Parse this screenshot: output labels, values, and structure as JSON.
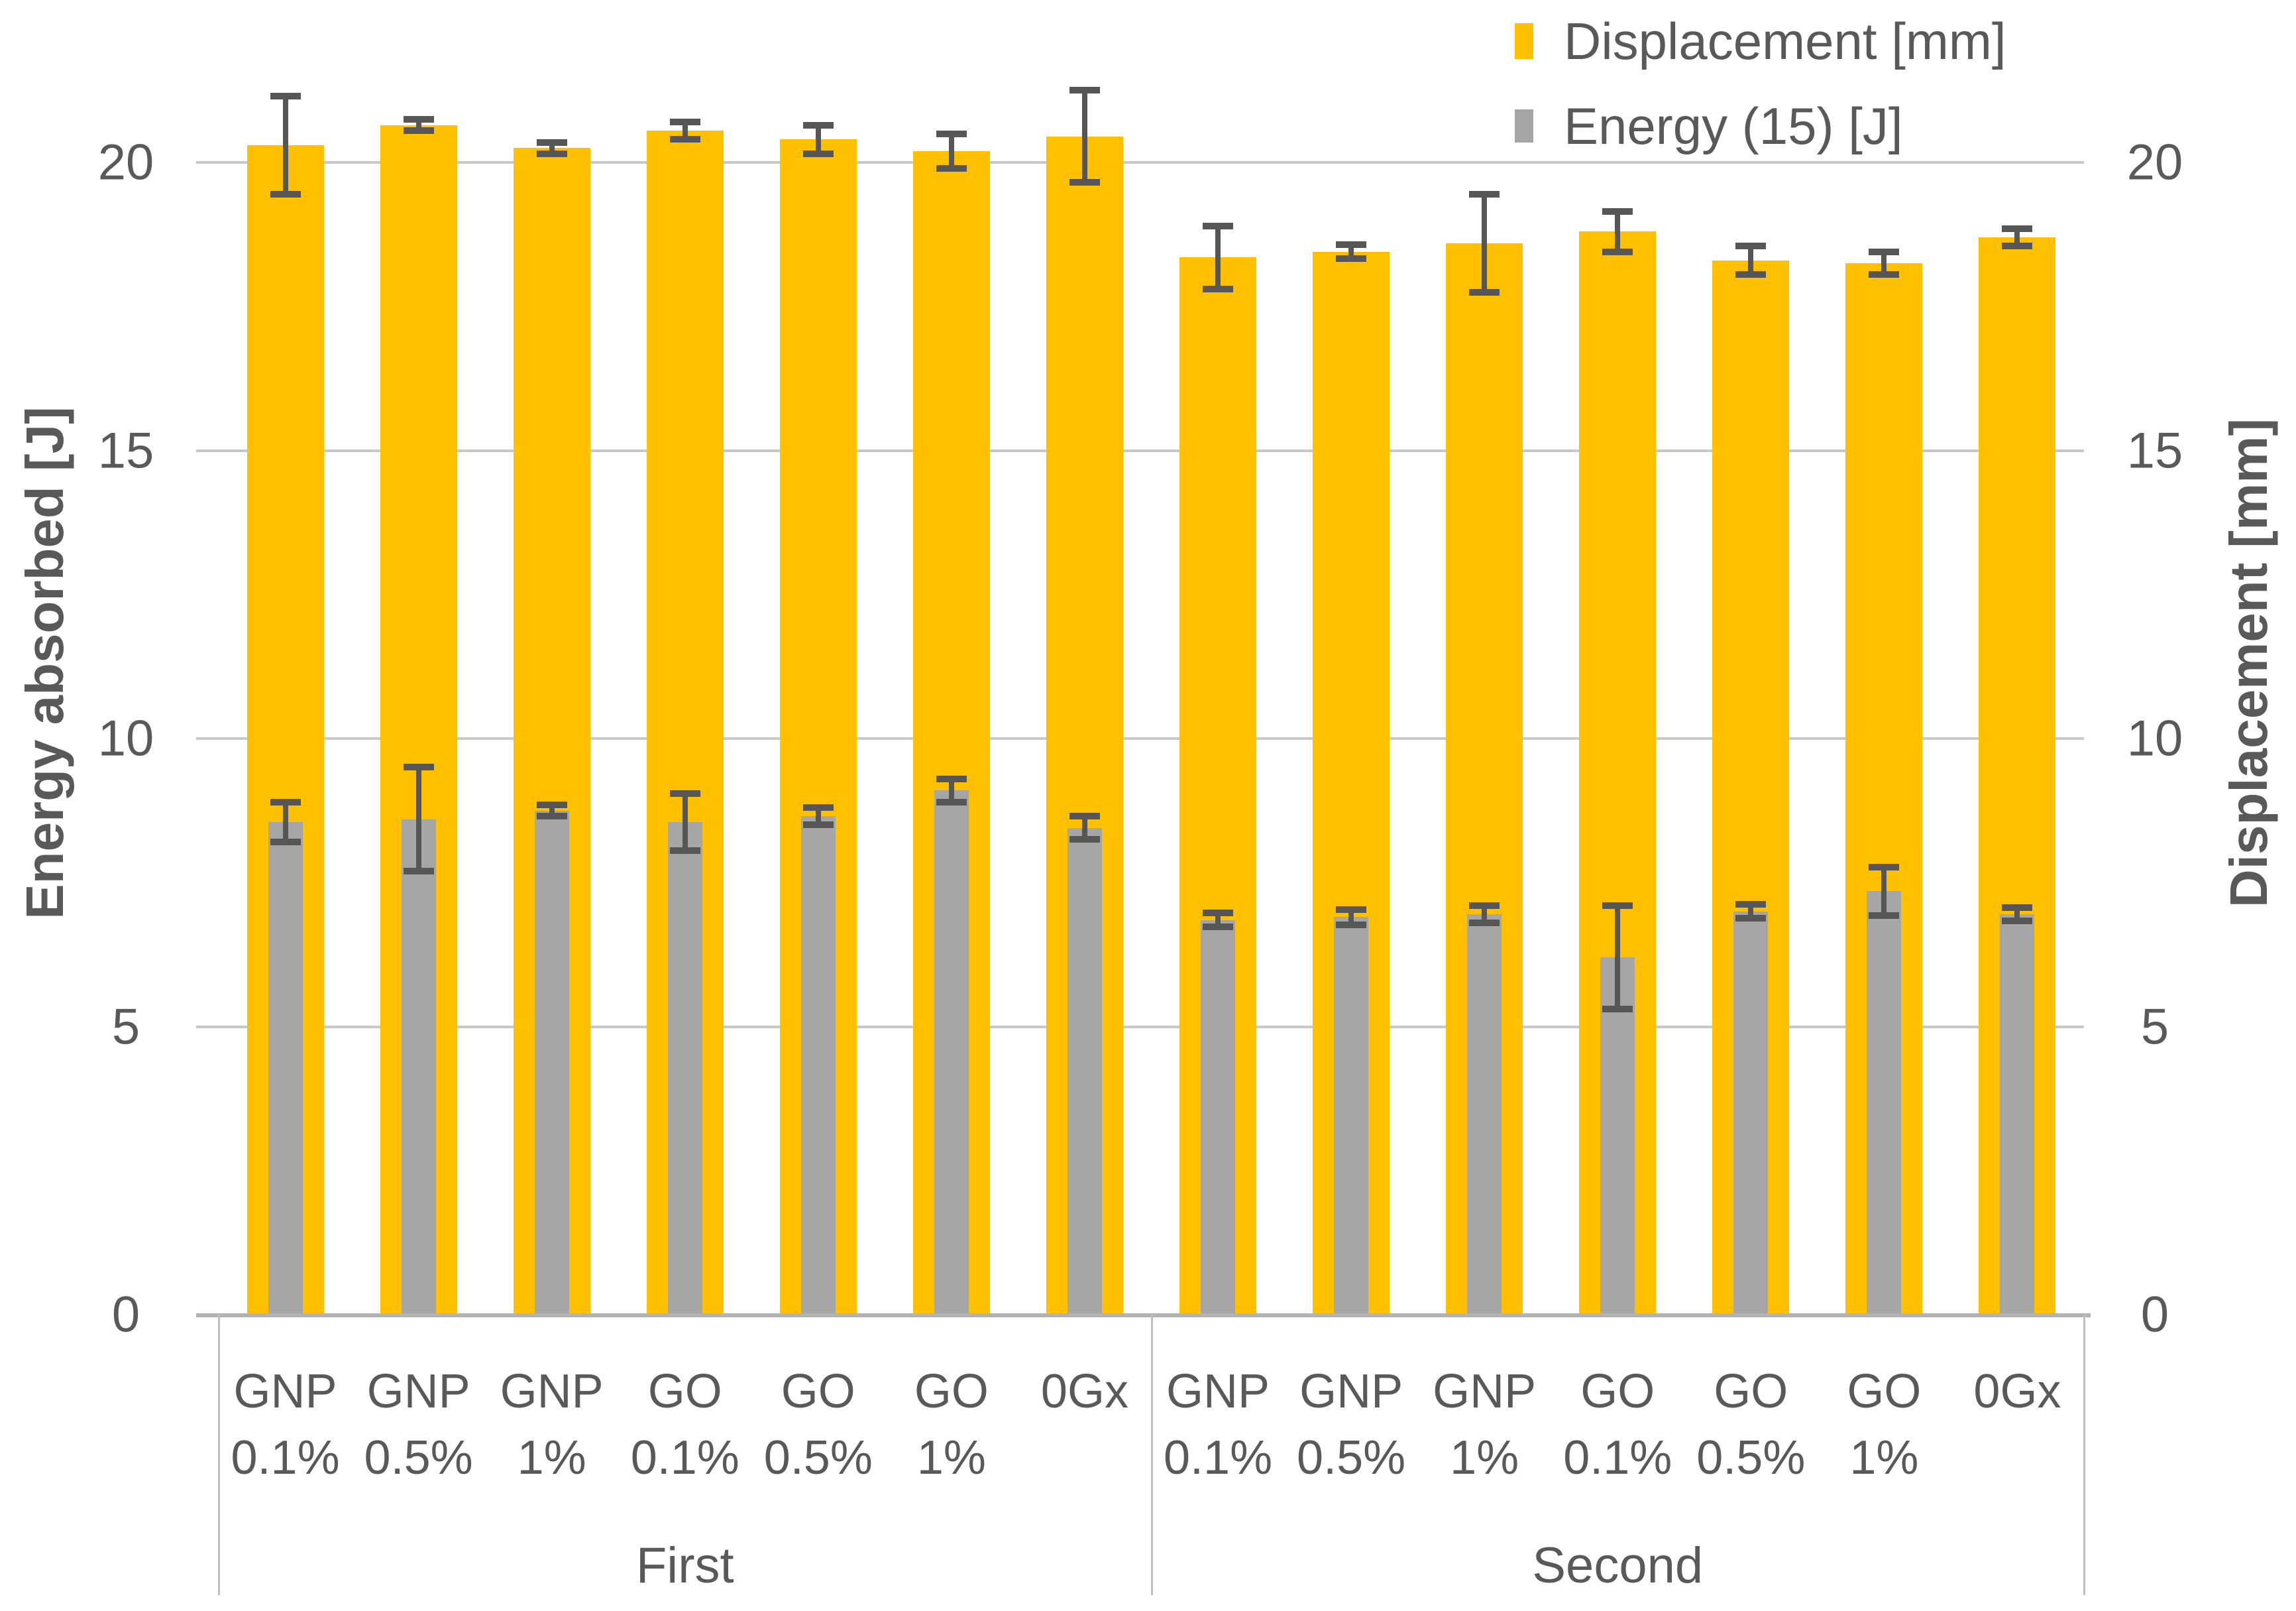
{
  "legend": {
    "items": [
      {
        "label": "Displacement [mm]",
        "color": "#FFC000"
      },
      {
        "label": "Energy (15) [J]",
        "color": "#A6A6A6"
      }
    ]
  },
  "axes": {
    "left": {
      "title": "Energy absorbed [J]",
      "tick_labels": [
        "0",
        "5",
        "10",
        "15",
        "20"
      ],
      "range": [
        0,
        20
      ]
    },
    "right": {
      "title": "Displacement [mm]",
      "tick_labels": [
        "0",
        "5",
        "10",
        "15",
        "20"
      ],
      "range": [
        0,
        20
      ]
    }
  },
  "chart_data": {
    "type": "bar",
    "title": "",
    "groups": [
      "First",
      "Second"
    ],
    "categories": [
      "GNP 0.1%",
      "GNP 0.5%",
      "GNP 1%",
      "GO 0.1%",
      "GO 0.5%",
      "GO 1%",
      "0Gx"
    ],
    "categories_line1": [
      "GNP",
      "GNP",
      "GNP",
      "GO",
      "GO",
      "GO",
      "0Gx"
    ],
    "categories_line2": [
      "0.1%",
      "0.5%",
      "1%",
      "0.1%",
      "0.5%",
      "1%",
      ""
    ],
    "ylim": [
      0,
      20
    ],
    "grid": true,
    "legend_position": "top-right",
    "series": [
      {
        "name": "Displacement [mm]",
        "color": "#FFC000",
        "axis": "right",
        "values": {
          "First": [
            20.3,
            20.65,
            20.25,
            20.55,
            20.4,
            20.2,
            20.45
          ],
          "Second": [
            18.35,
            18.45,
            18.6,
            18.8,
            18.3,
            18.25,
            18.7
          ]
        },
        "errors": {
          "First": [
            0.85,
            0.1,
            0.1,
            0.15,
            0.25,
            0.3,
            0.8
          ],
          "Second": [
            0.55,
            0.12,
            0.85,
            0.35,
            0.25,
            0.2,
            0.15
          ]
        }
      },
      {
        "name": "Energy (15) [J]",
        "color": "#A6A6A6",
        "axis": "left",
        "values": {
          "First": [
            8.55,
            8.6,
            8.75,
            8.55,
            8.65,
            9.1,
            8.45
          ],
          "Second": [
            6.85,
            6.9,
            6.95,
            6.2,
            7.0,
            7.35,
            6.95
          ]
        },
        "errors": {
          "First": [
            0.35,
            0.9,
            0.1,
            0.5,
            0.15,
            0.2,
            0.2
          ],
          "Second": [
            0.12,
            0.13,
            0.15,
            0.9,
            0.12,
            0.42,
            0.12
          ]
        }
      }
    ],
    "error_bar_color": "#565656",
    "gridline_color": "#c9c9c9",
    "text_color": "#595959"
  }
}
